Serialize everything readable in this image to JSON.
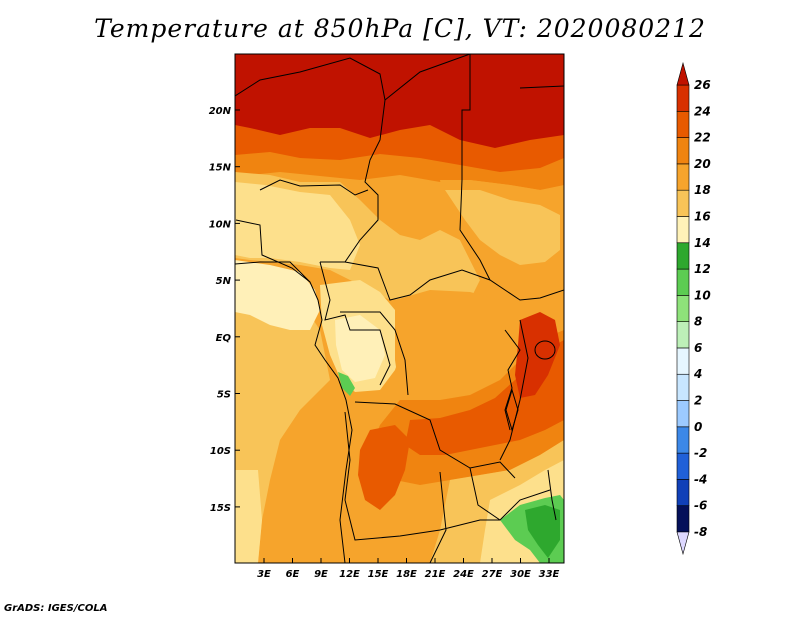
{
  "title": "Temperature at 850hPa [C], VT: 2020080212",
  "credit": "GrADS: IGES/COLA",
  "map": {
    "lat_labels": [
      "20N",
      "15N",
      "10N",
      "5N",
      "EQ",
      "5S",
      "10S",
      "15S"
    ],
    "lat_values": [
      20,
      15,
      10,
      5,
      0,
      -5,
      -10,
      -15
    ],
    "lon_labels": [
      "3E",
      "6E",
      "9E",
      "12E",
      "15E",
      "18E",
      "21E",
      "24E",
      "27E",
      "30E",
      "33E"
    ],
    "lon_values": [
      3,
      6,
      9,
      12,
      15,
      18,
      21,
      24,
      27,
      30,
      33
    ]
  },
  "colorbar": {
    "labels": [
      "26",
      "24",
      "22",
      "20",
      "18",
      "16",
      "14",
      "12",
      "10",
      "8",
      "6",
      "4",
      "2",
      "0",
      "-2",
      "-4",
      "-6",
      "-8"
    ],
    "colors": [
      "#c01200",
      "#de2a00",
      "#ee5a00",
      "#f58a00",
      "#f8a830",
      "#f8c460",
      "#fde090",
      "#fff2c0",
      "#3aaa3a",
      "#66cc55",
      "#99e088",
      "#c8f0c0",
      "#dff6ff",
      "#b8e2ff",
      "#86c4ff",
      "#4a98f0",
      "#1e5ad8",
      "#0c3aaa",
      "#08208a",
      "#04105a"
    ],
    "bottom_triangle_color": "#ddd8ff",
    "top_triangle_color": "#c01200"
  },
  "legend_colors_ordered_low_to_high": [
    "#ddd8ff",
    "#04105a",
    "#1040b8",
    "#2060d8",
    "#3c88e8",
    "#6aaaf8",
    "#9ccaff",
    "#c8e6ff",
    "#e6f6ff",
    "#bdf0b8",
    "#8ee27a",
    "#5ccc52",
    "#2ea82e",
    "#fff2b8",
    "#fde08c",
    "#f8c458",
    "#f6a42c",
    "#f08410",
    "#e85a00",
    "#d83000",
    "#c01200"
  ],
  "field_colors": {
    "t14": "#fff0b8",
    "t16": "#fde08c",
    "t18": "#f8c458",
    "t20": "#f6a42c",
    "t22": "#f08410",
    "t24": "#e85a00",
    "t26": "#d83000",
    "t28": "#c01200",
    "g12": "#2ea82e",
    "g10": "#5ccc52",
    "g8": "#8ee27a"
  }
}
